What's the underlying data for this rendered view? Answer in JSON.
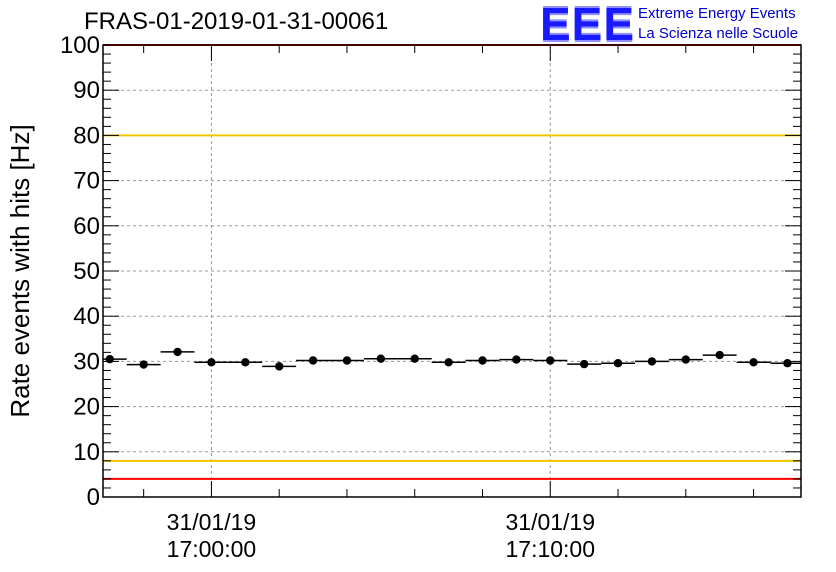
{
  "header": {
    "title": "FRAS-01-2019-01-31-00061"
  },
  "logo": {
    "mark": "EEE",
    "line1": "Extreme Energy Events",
    "line2": "La Scienza nelle Scuole",
    "color": "#1a1aff"
  },
  "colors": {
    "red_limit": "#ff0000",
    "yellow_limit": "#f5c400",
    "marker": "#000000",
    "grid": "#999999"
  },
  "chart_data": {
    "type": "scatter",
    "title": "FRAS-01-2019-01-31-00061",
    "xlabel": "",
    "ylabel": "Rate events with hits [Hz]",
    "ylim": [
      0,
      100
    ],
    "xlim_minutes": [
      -3.2,
      17.4
    ],
    "grid": true,
    "yticks": [
      0,
      10,
      20,
      30,
      40,
      50,
      60,
      70,
      80,
      90,
      100
    ],
    "ytick_labels": [
      "0",
      "10",
      "20",
      "30",
      "40",
      "50",
      "60",
      "70",
      "80",
      "90",
      "100"
    ],
    "xticks": [
      {
        "minute": 0,
        "date": "31/01/19",
        "time": "17:00:00"
      },
      {
        "minute": 10,
        "date": "31/01/19",
        "time": "17:10:00"
      }
    ],
    "bin_width_minutes": 1,
    "x_minutes": [
      -3,
      -2,
      -1,
      0,
      1,
      2,
      3,
      4,
      5,
      6,
      7,
      8,
      9,
      10,
      11,
      12,
      13,
      14,
      15,
      16,
      17
    ],
    "values": [
      30.5,
      29.3,
      32.1,
      29.8,
      29.8,
      28.9,
      30.2,
      30.2,
      30.6,
      30.6,
      29.8,
      30.2,
      30.4,
      30.2,
      29.4,
      29.6,
      30.0,
      30.4,
      31.4,
      29.8,
      29.6
    ],
    "reference_lines": [
      {
        "name": "upper-red-limit",
        "value": 100,
        "color": "#ff0000"
      },
      {
        "name": "upper-yellow-limit",
        "value": 80,
        "color": "#f5c400"
      },
      {
        "name": "lower-yellow-limit",
        "value": 8,
        "color": "#f5c400"
      },
      {
        "name": "lower-red-limit",
        "value": 4,
        "color": "#ff0000"
      }
    ]
  }
}
